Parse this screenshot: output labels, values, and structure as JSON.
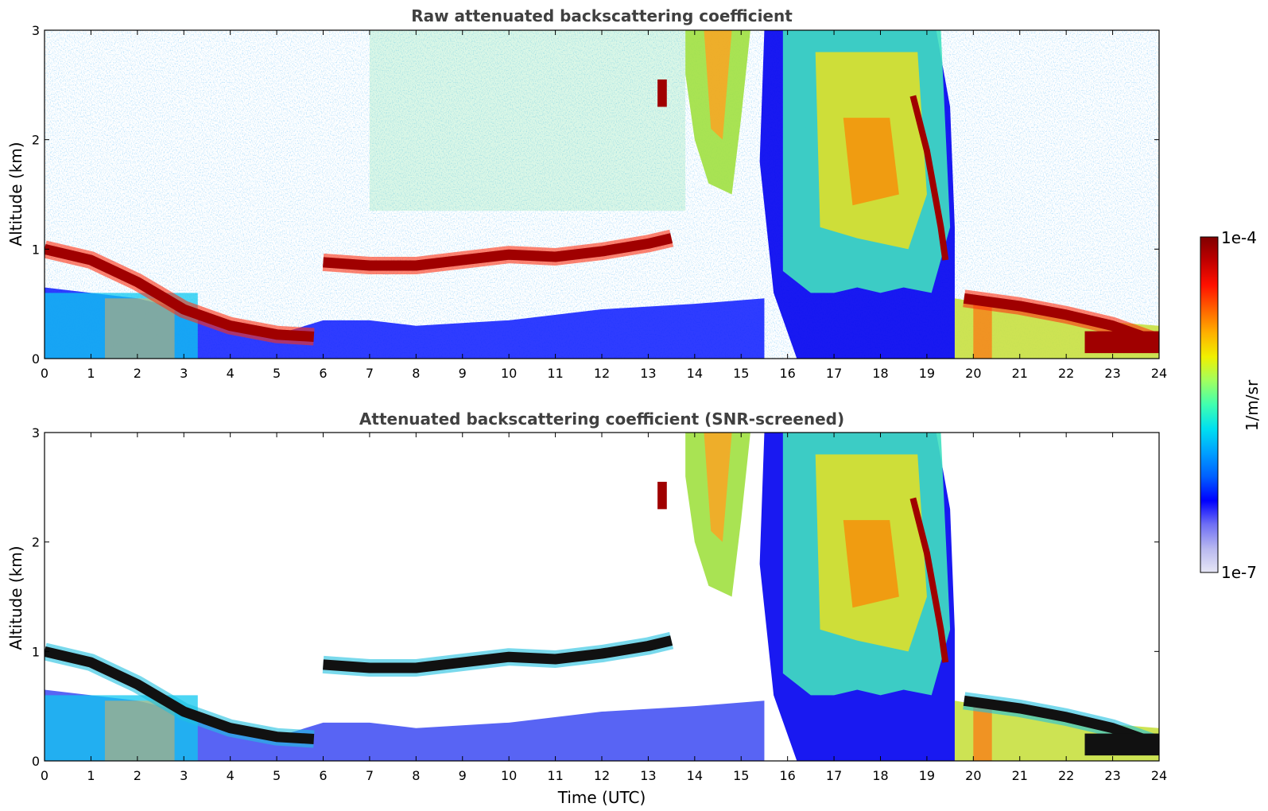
{
  "chart_data": [
    {
      "type": "heatmap",
      "title": "Raw attenuated backscattering coefficient",
      "xlabel": "",
      "ylabel": "Altitude (km)",
      "xlim": [
        0,
        24
      ],
      "ylim": [
        0,
        3
      ],
      "xticks": [
        "0",
        "1",
        "2",
        "3",
        "4",
        "5",
        "6",
        "7",
        "8",
        "9",
        "10",
        "11",
        "12",
        "13",
        "14",
        "15",
        "16",
        "17",
        "18",
        "19",
        "20",
        "21",
        "22",
        "23",
        "24"
      ],
      "yticks": [
        "0",
        "1",
        "2",
        "3"
      ],
      "features": [
        {
          "name": "aerosol layer top",
          "x": [
            0,
            1,
            2,
            3,
            4,
            5,
            5.8,
            6,
            7,
            8,
            9,
            10,
            11,
            12,
            13,
            13.5
          ],
          "y": [
            1.0,
            0.9,
            0.7,
            0.45,
            0.3,
            0.22,
            0.2,
            0.88,
            0.85,
            0.85,
            0.9,
            0.95,
            0.93,
            0.98,
            1.05,
            1.1
          ]
        },
        {
          "name": "cloud/precip region",
          "x": [
            13.8,
            19.6
          ],
          "y": [
            0,
            3.0
          ]
        },
        {
          "name": "evening layer",
          "x": [
            19.8,
            21,
            22,
            23,
            24
          ],
          "y": [
            0.55,
            0.48,
            0.4,
            0.3,
            0.15
          ]
        }
      ]
    },
    {
      "type": "heatmap",
      "title": "Attenuated backscattering coefficient (SNR-screened)",
      "xlabel": "Time (UTC)",
      "ylabel": "Altitude (km)",
      "xlim": [
        0,
        24
      ],
      "ylim": [
        0,
        3
      ],
      "xticks": [
        "0",
        "1",
        "2",
        "3",
        "4",
        "5",
        "6",
        "7",
        "8",
        "9",
        "10",
        "11",
        "12",
        "13",
        "14",
        "15",
        "16",
        "17",
        "18",
        "19",
        "20",
        "21",
        "22",
        "23",
        "24"
      ],
      "yticks": [
        "0",
        "1",
        "2",
        "3"
      ],
      "features": [
        {
          "name": "aerosol layer top",
          "x": [
            0,
            1,
            2,
            3,
            4,
            5,
            5.8,
            6,
            7,
            8,
            9,
            10,
            11,
            12,
            13,
            13.5
          ],
          "y": [
            1.0,
            0.9,
            0.7,
            0.45,
            0.3,
            0.22,
            0.2,
            0.88,
            0.85,
            0.85,
            0.9,
            0.95,
            0.93,
            0.98,
            1.05,
            1.1
          ]
        },
        {
          "name": "cloud/precip region",
          "x": [
            13.8,
            19.6
          ],
          "y": [
            0,
            3.0
          ]
        },
        {
          "name": "evening layer",
          "x": [
            19.8,
            21,
            22,
            23,
            24
          ],
          "y": [
            0.55,
            0.48,
            0.4,
            0.3,
            0.15
          ]
        }
      ]
    }
  ],
  "colorbar": {
    "label": "1/m/sr",
    "max_label": "1e-4",
    "min_label": "1e-7",
    "colormap": [
      "#e6e6f5",
      "#b8b8ef",
      "#6f6ff5",
      "#0000ff",
      "#0060ff",
      "#00a0ff",
      "#00e0f0",
      "#40ffb0",
      "#a0ff60",
      "#f0f000",
      "#ffb000",
      "#ff6000",
      "#ff1000",
      "#c00000",
      "#800000"
    ]
  }
}
